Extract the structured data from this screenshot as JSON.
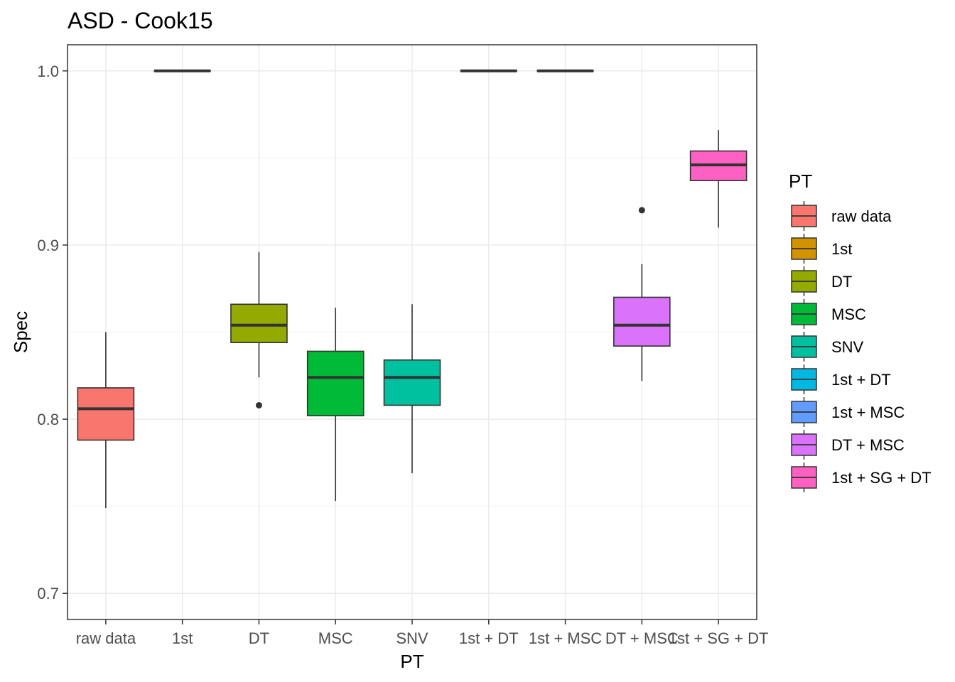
{
  "chart_data": {
    "type": "boxplot",
    "title": "ASD - Cook15",
    "xlabel": "PT",
    "ylabel": "Spec",
    "ylim": [
      0.685,
      1.015
    ],
    "y_ticks": [
      0.7,
      0.8,
      0.9,
      1.0
    ],
    "y_tick_labels": [
      "0.7",
      "0.8",
      "0.9",
      "1.0"
    ],
    "grid": true,
    "legend": {
      "title": "PT",
      "position": "right"
    },
    "categories": [
      "raw data",
      "1st",
      "DT",
      "MSC",
      "SNV",
      "1st + DT",
      "1st + MSC",
      "DT + MSC",
      "1st + SG + DT"
    ],
    "series": [
      {
        "name": "raw data",
        "color": "#F8766D",
        "min": 0.749,
        "q1": 0.788,
        "median": 0.806,
        "q3": 0.818,
        "max": 0.85,
        "outliers": []
      },
      {
        "name": "1st",
        "color": "#D39200",
        "min": 1.0,
        "q1": 1.0,
        "median": 1.0,
        "q3": 1.0,
        "max": 1.0,
        "outliers": []
      },
      {
        "name": "DT",
        "color": "#93AA00",
        "min": 0.824,
        "q1": 0.844,
        "median": 0.854,
        "q3": 0.866,
        "max": 0.896,
        "outliers": [
          0.808
        ]
      },
      {
        "name": "MSC",
        "color": "#00BA38",
        "min": 0.753,
        "q1": 0.802,
        "median": 0.824,
        "q3": 0.839,
        "max": 0.864,
        "outliers": []
      },
      {
        "name": "SNV",
        "color": "#00C19F",
        "min": 0.769,
        "q1": 0.808,
        "median": 0.824,
        "q3": 0.834,
        "max": 0.866,
        "outliers": []
      },
      {
        "name": "1st + DT",
        "color": "#00B9E3",
        "min": 1.0,
        "q1": 1.0,
        "median": 1.0,
        "q3": 1.0,
        "max": 1.0,
        "outliers": []
      },
      {
        "name": "1st + MSC",
        "color": "#619CFF",
        "min": 1.0,
        "q1": 1.0,
        "median": 1.0,
        "q3": 1.0,
        "max": 1.0,
        "outliers": []
      },
      {
        "name": "DT + MSC",
        "color": "#DB72FB",
        "min": 0.822,
        "q1": 0.842,
        "median": 0.854,
        "q3": 0.87,
        "max": 0.889,
        "outliers": [
          0.92
        ]
      },
      {
        "name": "1st + SG + DT",
        "color": "#FF61C3",
        "min": 0.91,
        "q1": 0.937,
        "median": 0.946,
        "q3": 0.954,
        "max": 0.966,
        "outliers": []
      }
    ]
  }
}
